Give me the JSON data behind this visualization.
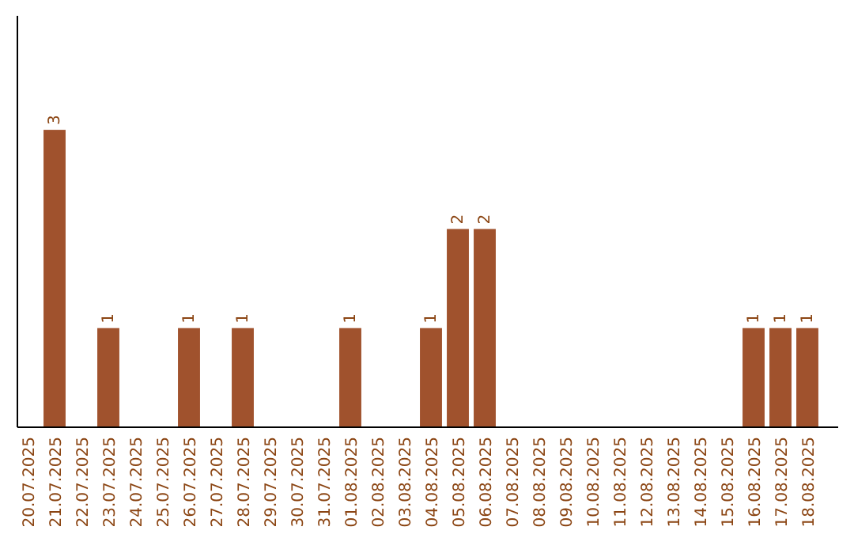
{
  "chart_data": {
    "type": "bar",
    "categories": [
      "20.07.2025",
      "21.07.2025",
      "22.07.2025",
      "23.07.2025",
      "24.07.2025",
      "25.07.2025",
      "26.07.2025",
      "27.07.2025",
      "28.07.2025",
      "29.07.2025",
      "30.07.2025",
      "31.07.2025",
      "01.08.2025",
      "02.08.2025",
      "03.08.2025",
      "04.08.2025",
      "05.08.2025",
      "06.08.2025",
      "07.08.2025",
      "08.08.2025",
      "09.08.2025",
      "10.08.2025",
      "11.08.2025",
      "12.08.2025",
      "13.08.2025",
      "14.08.2025",
      "15.08.2025",
      "16.08.2025",
      "17.08.2025",
      "18.08.2025"
    ],
    "values": [
      0,
      3,
      0,
      1,
      0,
      0,
      1,
      0,
      1,
      0,
      0,
      0,
      1,
      0,
      0,
      1,
      2,
      2,
      0,
      0,
      0,
      0,
      0,
      0,
      0,
      0,
      0,
      1,
      1,
      1
    ],
    "value_labels": [
      null,
      "3",
      null,
      "1",
      null,
      null,
      "1",
      null,
      "1",
      null,
      null,
      null,
      "1",
      null,
      null,
      "1",
      "2",
      "2",
      null,
      null,
      null,
      null,
      null,
      null,
      null,
      null,
      null,
      "1",
      "1",
      "1"
    ],
    "color": "#a0522d",
    "ylim": [
      0,
      4.15
    ],
    "tick_labels": "x"
  }
}
